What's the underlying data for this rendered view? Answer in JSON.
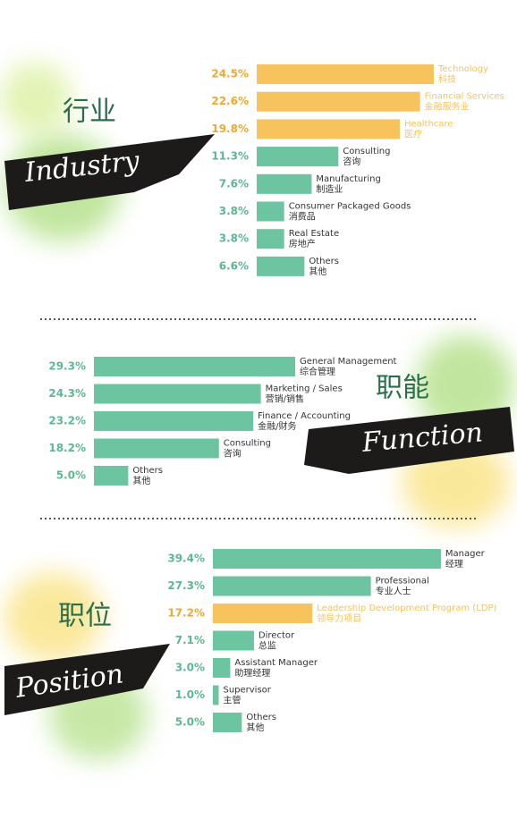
{
  "chart_data": [
    {
      "type": "bar",
      "title": "行业",
      "subtitle": "Industry",
      "categories": [
        "Technology",
        "Financial Services",
        "Healthcare",
        "Consulting",
        "Manufacturing",
        "Consumer Packaged Goods",
        "Real Estate",
        "Others"
      ],
      "categories_cn": [
        "科技",
        "金融服务业",
        "医疗",
        "咨询",
        "制造业",
        "消费品",
        "房地产",
        "其他"
      ],
      "values": [
        24.5,
        22.6,
        19.8,
        11.3,
        7.6,
        3.8,
        3.8,
        6.6
      ],
      "value_labels": [
        "24.5%",
        "22.6%",
        "19.8%",
        "11.3%",
        "7.6%",
        "3.8%",
        "3.8%",
        "6.6%"
      ],
      "colors": [
        "#f7c35c",
        "#f7c35c",
        "#f7c35c",
        "#6cc4a0",
        "#6cc4a0",
        "#6cc4a0",
        "#6cc4a0",
        "#6cc4a0"
      ]
    },
    {
      "type": "bar",
      "title": "职能",
      "subtitle": "Function",
      "categories": [
        "General Management",
        "Marketing / Sales",
        "Finance / Accounting",
        "Consulting",
        "Others"
      ],
      "categories_cn": [
        "综合管理",
        "营销/销售",
        "金融/财务",
        "咨询",
        "其他"
      ],
      "values": [
        29.3,
        24.3,
        23.2,
        18.2,
        5.0
      ],
      "value_labels": [
        "29.3%",
        "24.3%",
        "23.2%",
        "18.2%",
        "5.0%"
      ],
      "colors": [
        "#6cc4a0",
        "#6cc4a0",
        "#6cc4a0",
        "#6cc4a0",
        "#6cc4a0"
      ]
    },
    {
      "type": "bar",
      "title": "职位",
      "subtitle": "Position",
      "categories": [
        "Manager",
        "Professional",
        "Leadership Development Program (LDP)",
        "Director",
        "Assistant Manager",
        "Supervisor",
        "Others"
      ],
      "categories_cn": [
        "经理",
        "专业人士",
        "领导力项目",
        "总监",
        "助理经理",
        "主管",
        "其他"
      ],
      "values": [
        39.4,
        27.3,
        17.2,
        7.1,
        3.0,
        1.0,
        5.0
      ],
      "value_labels": [
        "39.4%",
        "27.3%",
        "17.2%",
        "7.1%",
        "3.0%",
        "1.0%",
        "5.0%"
      ],
      "colors": [
        "#6cc4a0",
        "#6cc4a0",
        "#f7c35c",
        "#6cc4a0",
        "#6cc4a0",
        "#6cc4a0",
        "#6cc4a0"
      ]
    }
  ]
}
